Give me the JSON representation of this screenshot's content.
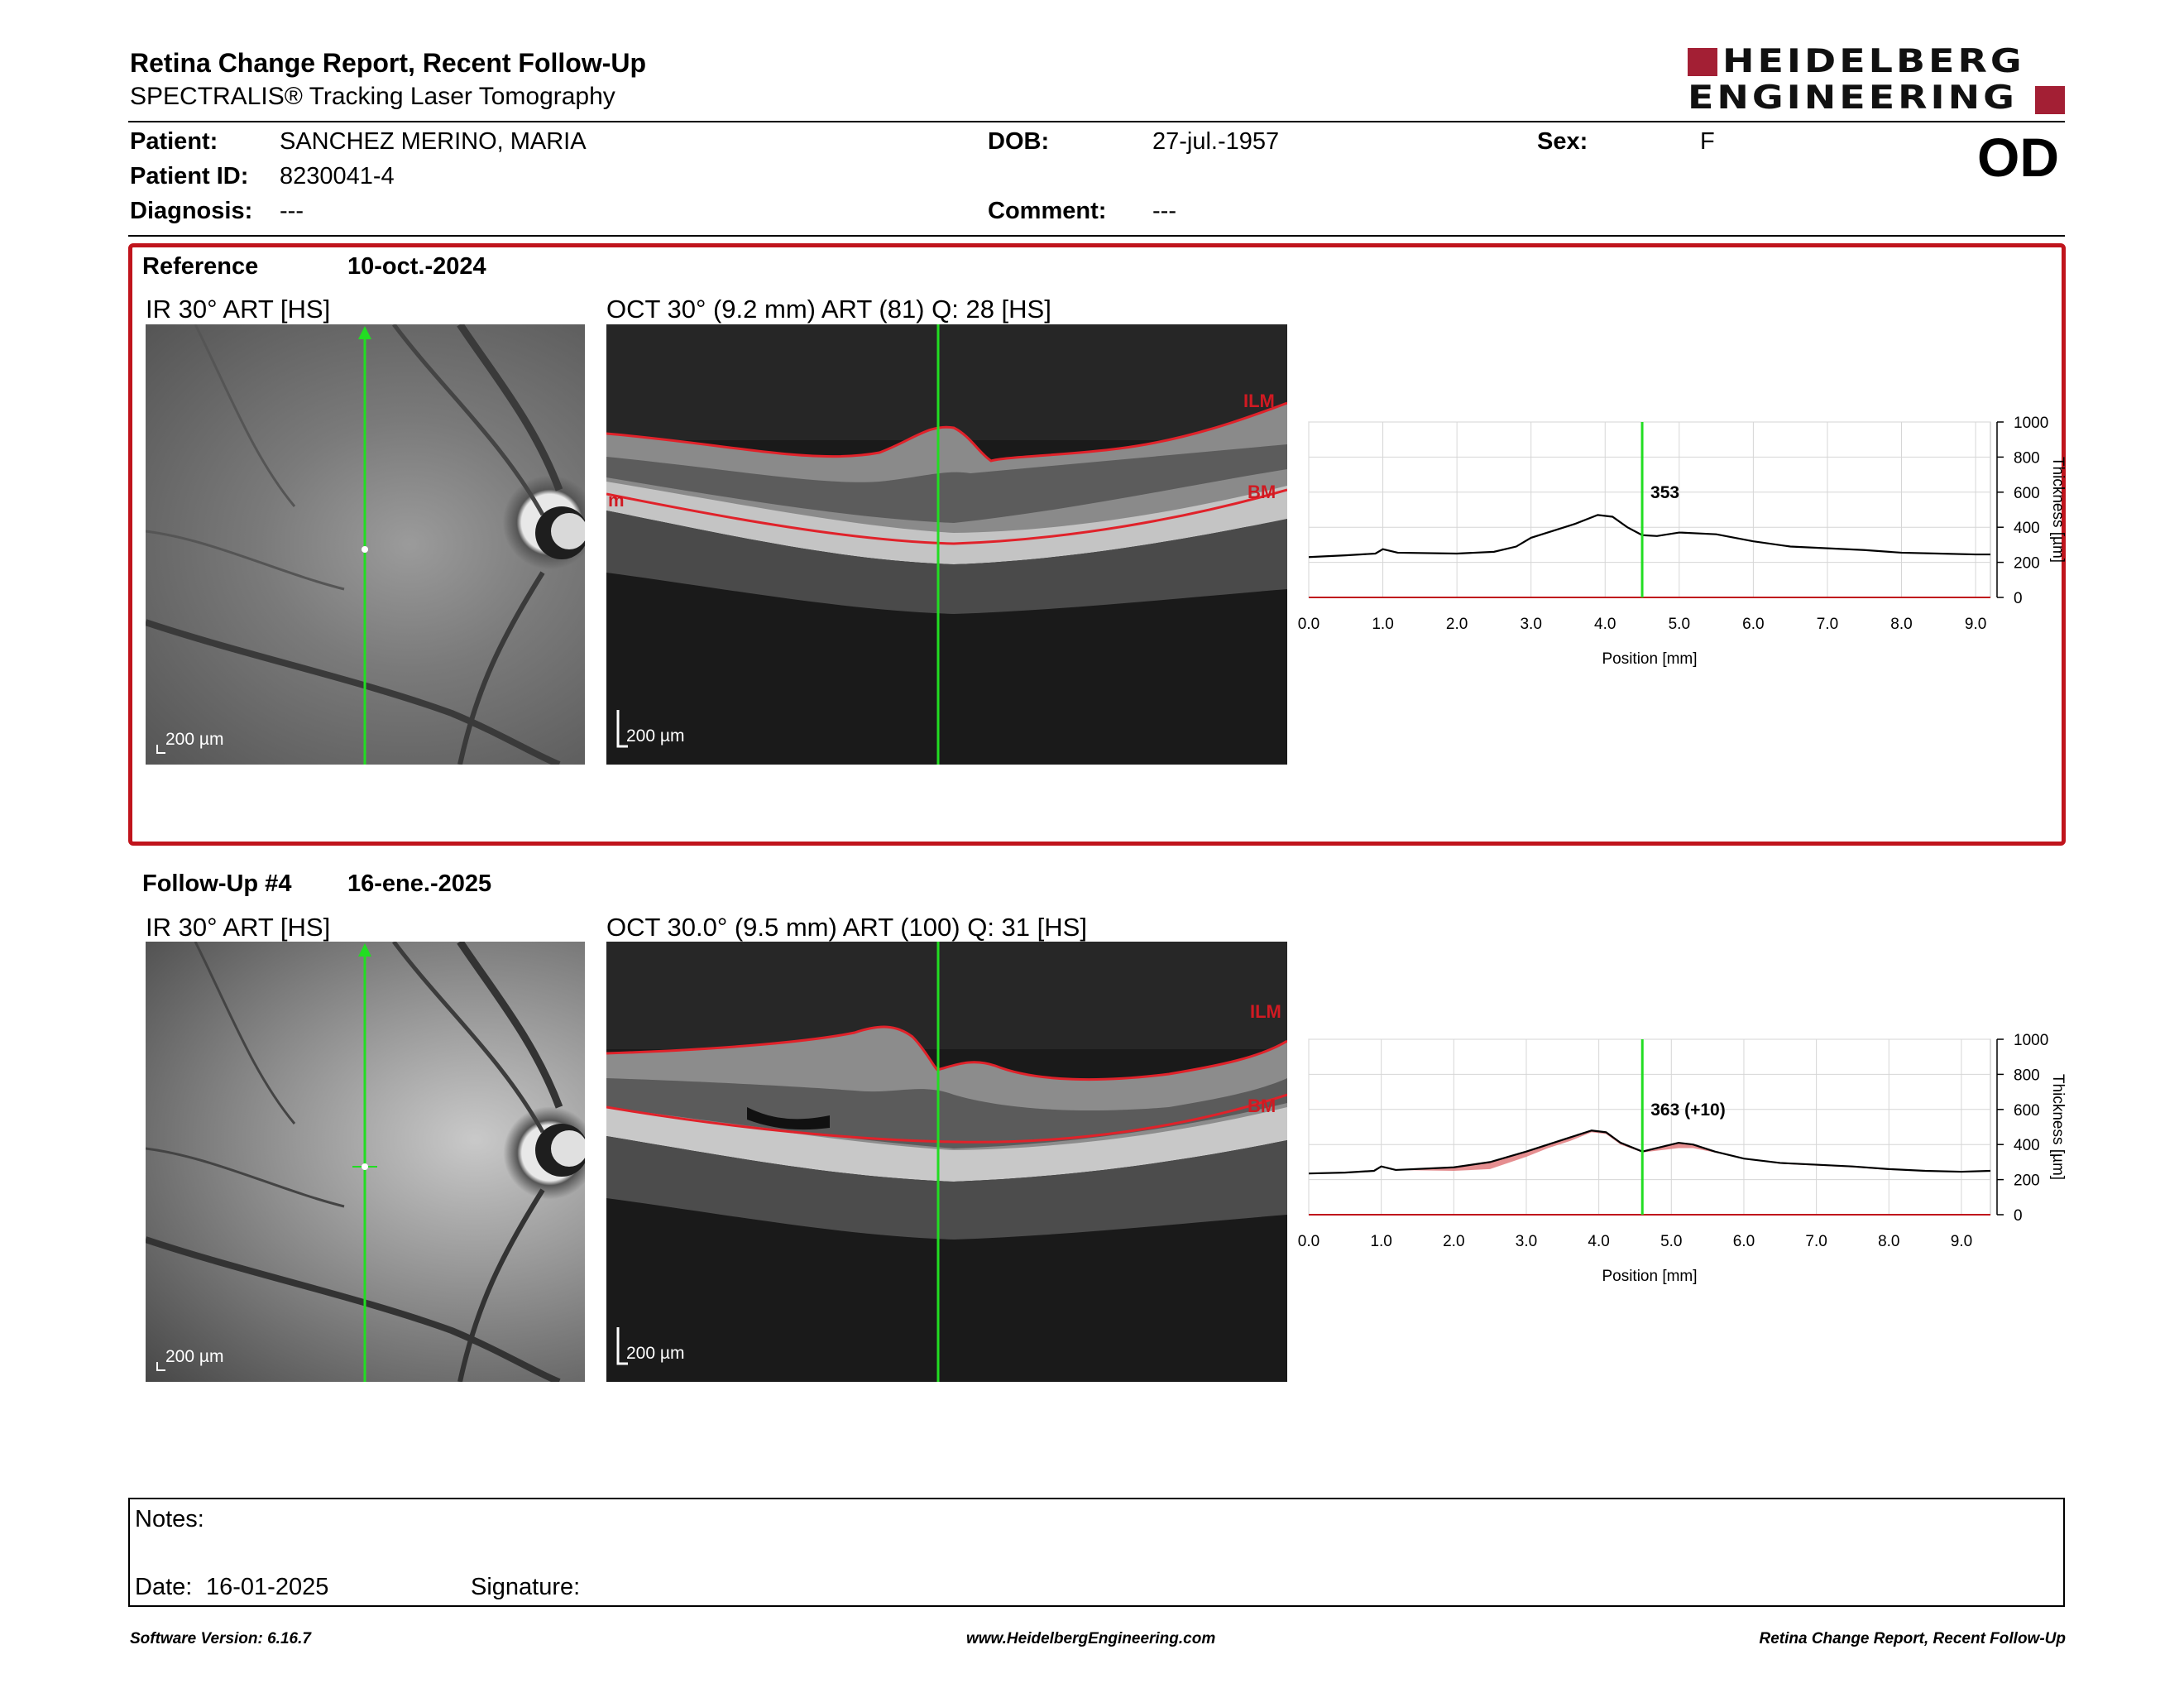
{
  "header": {
    "title": "Retina Change Report, Recent Follow-Up",
    "subtitle": "SPECTRALIS® Tracking Laser Tomography",
    "brand_line1": "HEIDELBERG",
    "brand_line2": "ENGINEERING",
    "brand_color": "#a31f34",
    "eye": "OD"
  },
  "patient": {
    "name_label": "Patient:",
    "name": "SANCHEZ MERINO, MARIA",
    "id_label": "Patient ID:",
    "id": "8230041-4",
    "diagnosis_label": "Diagnosis:",
    "diagnosis": "---",
    "dob_label": "DOB:",
    "dob": "27-jul.-1957",
    "comment_label": "Comment:",
    "comment": "---",
    "sex_label": "Sex:",
    "sex": "F"
  },
  "reference": {
    "label": "Reference",
    "date": "10-oct.-2024",
    "ir_caption": "IR 30° ART [HS]",
    "oct_caption": "OCT 30° (9.2 mm) ART (81) Q: 28 [HS]",
    "ir_scale": "200 µm",
    "oct_scale": "200 µm",
    "ilm_label": "ILM",
    "bm_label": "BM",
    "edge_label": "m"
  },
  "followup": {
    "label": "Follow-Up #4",
    "date": "16-ene.-2025",
    "ir_caption": "IR 30° ART [HS]",
    "oct_caption": "OCT 30.0° (9.5 mm) ART (100) Q: 31 [HS]",
    "ir_scale": "200 µm",
    "oct_scale": "200 µm",
    "ilm_label": "ILM",
    "bm_label": "BM"
  },
  "chart_data": [
    {
      "type": "line",
      "xlabel": "Position [mm]",
      "ylabel": "Thickness [µm]",
      "xlim": [
        0,
        9.2
      ],
      "ylim": [
        0,
        1000
      ],
      "x_ticks": [
        "0.0",
        "1.0",
        "2.0",
        "3.0",
        "4.0",
        "5.0",
        "6.0",
        "7.0",
        "8.0",
        "9.0"
      ],
      "y_ticks": [
        "0",
        "200",
        "400",
        "600",
        "800",
        "1000"
      ],
      "grid": true,
      "marker_x": 4.5,
      "marker_label": "353",
      "series": [
        {
          "x": [
            0,
            0.5,
            0.9,
            1.0,
            1.2,
            2.0,
            2.5,
            2.8,
            3.0,
            3.3,
            3.6,
            3.9,
            4.1,
            4.3,
            4.5,
            4.7,
            5.0,
            5.5,
            6.0,
            6.5,
            7.0,
            7.5,
            8.0,
            8.5,
            9.0,
            9.2
          ],
          "y": [
            230,
            240,
            250,
            275,
            255,
            250,
            260,
            290,
            340,
            380,
            420,
            470,
            460,
            400,
            355,
            350,
            370,
            360,
            320,
            290,
            280,
            270,
            255,
            250,
            245,
            245
          ]
        }
      ]
    },
    {
      "type": "line",
      "xlabel": "Position [mm]",
      "ylabel": "Thickness [µm]",
      "xlim": [
        0,
        9.4
      ],
      "ylim": [
        0,
        1000
      ],
      "x_ticks": [
        "0.0",
        "1.0",
        "2.0",
        "3.0",
        "4.0",
        "5.0",
        "6.0",
        "7.0",
        "8.0",
        "9.0"
      ],
      "y_ticks": [
        "0",
        "200",
        "400",
        "600",
        "800",
        "1000"
      ],
      "grid": true,
      "marker_x": 4.6,
      "marker_label": "363 (+10)",
      "series": [
        {
          "x": [
            0,
            0.5,
            0.9,
            1.0,
            1.2,
            2.0,
            2.5,
            3.0,
            3.3,
            3.6,
            3.9,
            4.1,
            4.3,
            4.6,
            4.8,
            5.1,
            5.3,
            5.6,
            6.0,
            6.5,
            7.0,
            7.5,
            8.0,
            8.5,
            9.0,
            9.4
          ],
          "y": [
            235,
            240,
            250,
            275,
            255,
            270,
            300,
            360,
            400,
            440,
            480,
            470,
            410,
            360,
            380,
            410,
            400,
            360,
            320,
            295,
            285,
            275,
            260,
            250,
            245,
            250
          ]
        },
        {
          "x": [
            0,
            0.5,
            0.9,
            1.0,
            1.2,
            2.0,
            2.5,
            3.0,
            3.3,
            3.6,
            3.9,
            4.1,
            4.3,
            4.6,
            4.8,
            5.1,
            5.3,
            5.6,
            6.0,
            6.5,
            7.0,
            7.5,
            8.0,
            8.5,
            9.0,
            9.4
          ],
          "y": [
            235,
            240,
            250,
            275,
            255,
            250,
            260,
            330,
            380,
            420,
            470,
            460,
            400,
            355,
            365,
            380,
            380,
            355,
            320,
            290,
            280,
            270,
            255,
            250,
            245,
            250
          ]
        }
      ]
    }
  ],
  "notes": {
    "notes_label": "Notes:",
    "date_label": "Date:",
    "date": "16-01-2025",
    "signature_label": "Signature:"
  },
  "footer": {
    "software": "Software Version: 6.16.7",
    "website": "www.HeidelbergEngineering.com",
    "report": "Retina Change Report, Recent Follow-Up"
  }
}
